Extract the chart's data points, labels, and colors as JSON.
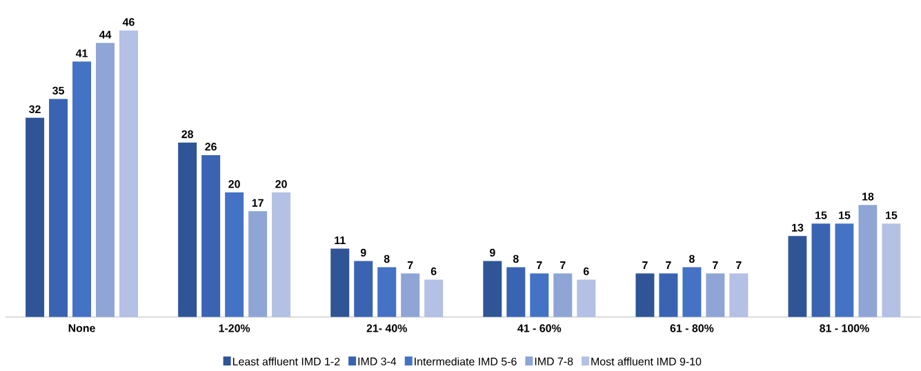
{
  "chart_data": {
    "type": "bar",
    "categories": [
      "None",
      "1-20%",
      "21- 40%",
      "41 - 60%",
      "61 - 80%",
      "81 - 100%"
    ],
    "series": [
      {
        "name": "Least affluent IMD 1-2",
        "color": "#2f5597",
        "values": [
          32,
          28,
          11,
          9,
          7,
          13
        ]
      },
      {
        "name": "IMD 3-4",
        "color": "#3a64b2",
        "values": [
          35,
          26,
          9,
          8,
          7,
          15
        ]
      },
      {
        "name": "Intermediate IMD 5-6",
        "color": "#4472c4",
        "values": [
          41,
          20,
          8,
          7,
          8,
          15
        ]
      },
      {
        "name": "IMD 7-8",
        "color": "#8fa5d6",
        "values": [
          44,
          17,
          7,
          7,
          7,
          18
        ]
      },
      {
        "name": "Most affluent IMD 9-10",
        "color": "#b4c0e4",
        "values": [
          46,
          20,
          6,
          6,
          7,
          15
        ]
      }
    ],
    "data_labels": true,
    "legend": "bottom"
  }
}
